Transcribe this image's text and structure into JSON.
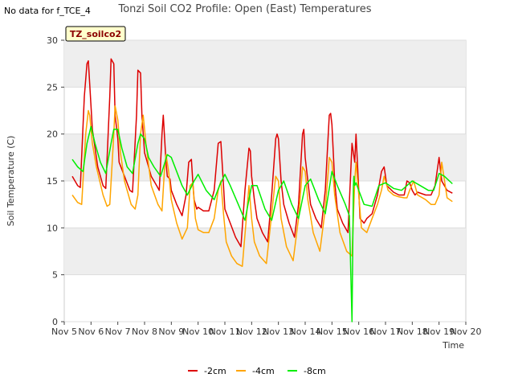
{
  "no_data_text": "No data for f_TCE_4",
  "badge_label": "TZ_soilco2",
  "chart_data": {
    "type": "line",
    "title": "Tonzi Soil CO2 Profile: Open (East) Temperatures",
    "xlabel": "Time",
    "ylabel": "Soil Temperature (C)",
    "xlim": [
      5,
      20
    ],
    "ylim": [
      0,
      30
    ],
    "x_ticks": [
      5,
      6,
      7,
      8,
      9,
      10,
      11,
      12,
      13,
      14,
      15,
      16,
      17,
      18,
      19,
      20
    ],
    "x_tick_labels": [
      "Nov 5",
      "Nov 6",
      "Nov 7",
      "Nov 8",
      "Nov 9",
      "Nov 10",
      "Nov 11",
      "Nov 12",
      "Nov 13",
      "Nov 14",
      "Nov 15",
      "Nov 16",
      "Nov 17",
      "Nov 18",
      "Nov 19",
      "Nov 20"
    ],
    "y_ticks": [
      0,
      5,
      10,
      15,
      20,
      25,
      30
    ],
    "y_tick_labels": [
      "0",
      "5",
      "10",
      "15",
      "20",
      "25",
      "30"
    ],
    "grid": true,
    "legend_position": "bottom-center",
    "series": [
      {
        "name": "-2cm",
        "color": "#dd0000",
        "x": [
          5.3,
          5.5,
          5.6,
          5.75,
          5.85,
          5.9,
          6.0,
          6.05,
          6.25,
          6.45,
          6.55,
          6.7,
          6.75,
          6.85,
          6.9,
          7.0,
          7.05,
          7.25,
          7.45,
          7.55,
          7.7,
          7.75,
          7.85,
          7.9,
          8.0,
          8.05,
          8.25,
          8.45,
          8.55,
          8.65,
          8.7,
          8.8,
          8.85,
          8.95,
          9.0,
          9.2,
          9.4,
          9.55,
          9.65,
          9.75,
          9.8,
          9.85,
          9.95,
          10.0,
          10.2,
          10.4,
          10.6,
          10.75,
          10.85,
          10.95,
          11.0,
          11.2,
          11.4,
          11.6,
          11.75,
          11.9,
          11.95,
          12.0,
          12.1,
          12.2,
          12.4,
          12.6,
          12.75,
          12.9,
          12.95,
          13.0,
          13.1,
          13.2,
          13.4,
          13.6,
          13.75,
          13.9,
          13.95,
          14.0,
          14.1,
          14.2,
          14.4,
          14.6,
          14.75,
          14.9,
          14.95,
          15.0,
          15.1,
          15.2,
          15.4,
          15.6,
          15.75,
          15.85,
          15.9,
          16.0,
          16.05,
          16.2,
          16.3,
          16.5,
          16.7,
          16.85,
          16.95,
          17.05,
          17.3,
          17.5,
          17.7,
          17.8,
          17.9,
          18.0,
          18.1,
          18.2,
          18.5,
          18.7,
          18.85,
          19.0,
          19.1,
          19.3,
          19.5
        ],
        "y": [
          15.5,
          14.5,
          14.3,
          24.0,
          27.5,
          27.8,
          23.0,
          20.5,
          16.5,
          14.5,
          14.2,
          24.0,
          28.0,
          27.5,
          22.0,
          19.5,
          17.0,
          15.5,
          14.0,
          13.8,
          22.0,
          26.8,
          26.5,
          22.0,
          18.0,
          17.5,
          15.5,
          14.5,
          14.0,
          20.0,
          22.0,
          17.0,
          15.5,
          15.2,
          14.0,
          12.5,
          11.3,
          13.5,
          17.0,
          17.3,
          15.0,
          13.0,
          12.0,
          12.2,
          11.8,
          11.8,
          14.0,
          19.0,
          19.2,
          14.5,
          12.0,
          10.5,
          9.0,
          8.0,
          14.0,
          18.5,
          18.2,
          15.5,
          13.0,
          11.0,
          9.5,
          8.5,
          13.5,
          19.5,
          20.0,
          19.5,
          15.0,
          12.5,
          10.5,
          9.0,
          12.5,
          20.0,
          20.5,
          17.5,
          15.0,
          12.5,
          11.0,
          10.0,
          14.0,
          22.0,
          22.2,
          21.0,
          15.0,
          12.0,
          10.5,
          9.5,
          19.0,
          17.0,
          20.0,
          14.0,
          11.0,
          10.5,
          11.0,
          11.5,
          13.5,
          16.0,
          16.5,
          14.5,
          13.8,
          13.5,
          13.5,
          15.0,
          14.8,
          14.0,
          13.5,
          13.8,
          13.5,
          13.5,
          14.5,
          17.5,
          15.0,
          14.0,
          13.7
        ]
      },
      {
        "name": "-4cm",
        "color": "#ffa500",
        "x": [
          5.3,
          5.5,
          5.65,
          5.8,
          5.9,
          5.95,
          6.05,
          6.2,
          6.45,
          6.6,
          6.7,
          6.85,
          6.9,
          7.0,
          7.1,
          7.25,
          7.5,
          7.65,
          7.75,
          7.85,
          7.95,
          8.05,
          8.25,
          8.5,
          8.65,
          8.75,
          8.8,
          8.9,
          9.0,
          9.2,
          9.4,
          9.6,
          9.7,
          9.8,
          9.9,
          10.0,
          10.2,
          10.4,
          10.6,
          10.75,
          10.85,
          10.95,
          11.05,
          11.25,
          11.45,
          11.65,
          11.8,
          11.9,
          12.0,
          12.1,
          12.3,
          12.55,
          12.75,
          12.9,
          13.0,
          13.1,
          13.3,
          13.55,
          13.75,
          13.9,
          14.0,
          14.1,
          14.3,
          14.55,
          14.75,
          14.9,
          15.0,
          15.1,
          15.3,
          15.55,
          15.75,
          15.85,
          15.9,
          16.0,
          16.1,
          16.3,
          16.5,
          16.7,
          16.85,
          16.95,
          17.1,
          17.3,
          17.5,
          17.7,
          17.8,
          17.9,
          18.05,
          18.2,
          18.5,
          18.7,
          18.85,
          19.0,
          19.1,
          19.3,
          19.5
        ],
        "y": [
          13.5,
          12.7,
          12.5,
          20.0,
          22.5,
          22.0,
          19.0,
          16.5,
          13.5,
          12.3,
          12.5,
          20.0,
          23.0,
          21.5,
          18.0,
          15.0,
          12.5,
          12.0,
          13.5,
          20.0,
          22.0,
          19.0,
          14.5,
          12.5,
          11.8,
          16.5,
          17.8,
          16.0,
          13.0,
          10.5,
          8.8,
          10.0,
          14.5,
          14.8,
          11.0,
          9.8,
          9.5,
          9.5,
          11.0,
          14.0,
          15.0,
          11.5,
          8.5,
          7.0,
          6.2,
          5.9,
          11.0,
          14.5,
          11.0,
          8.5,
          7.0,
          6.2,
          11.5,
          15.5,
          15.0,
          11.0,
          8.0,
          6.5,
          11.0,
          16.5,
          16.0,
          13.0,
          9.5,
          7.5,
          12.0,
          17.5,
          17.0,
          13.5,
          9.5,
          7.5,
          7.0,
          15.0,
          17.0,
          13.5,
          10.0,
          9.5,
          11.0,
          12.5,
          14.0,
          15.5,
          14.0,
          13.5,
          13.3,
          13.2,
          13.2,
          14.0,
          15.0,
          13.5,
          13.0,
          12.5,
          12.5,
          13.5,
          17.0,
          13.2,
          12.8
        ]
      },
      {
        "name": "-8cm",
        "color": "#00ee00",
        "x": [
          5.3,
          5.5,
          5.7,
          5.85,
          6.0,
          6.15,
          6.35,
          6.55,
          6.75,
          6.85,
          7.0,
          7.15,
          7.35,
          7.55,
          7.75,
          7.85,
          8.0,
          8.15,
          8.35,
          8.6,
          8.85,
          9.0,
          9.2,
          9.4,
          9.6,
          9.85,
          10.0,
          10.3,
          10.6,
          10.8,
          11.0,
          11.2,
          11.5,
          11.75,
          12.0,
          12.2,
          12.5,
          12.75,
          13.0,
          13.2,
          13.5,
          13.75,
          14.0,
          14.2,
          14.5,
          14.75,
          15.0,
          15.2,
          15.5,
          15.65,
          15.75,
          15.8,
          15.82,
          15.85,
          15.9,
          16.0,
          16.2,
          16.5,
          16.75,
          17.0,
          17.3,
          17.6,
          17.8,
          18.0,
          18.3,
          18.6,
          18.8,
          19.0,
          19.2,
          19.5
        ],
        "y": [
          17.3,
          16.5,
          16.0,
          19.0,
          20.8,
          19.0,
          17.0,
          15.8,
          19.0,
          20.5,
          20.5,
          18.5,
          16.5,
          15.8,
          19.0,
          20.0,
          19.5,
          17.5,
          16.5,
          15.5,
          17.8,
          17.5,
          16.0,
          14.5,
          13.5,
          15.0,
          15.7,
          14.0,
          13.0,
          14.5,
          15.7,
          14.5,
          12.5,
          10.8,
          14.5,
          14.5,
          12.0,
          10.8,
          14.0,
          15.0,
          12.5,
          11.0,
          14.5,
          15.2,
          13.0,
          11.5,
          16.0,
          14.5,
          12.5,
          11.3,
          0.0,
          14.5,
          15.5,
          14.5,
          14.8,
          14.0,
          12.5,
          12.3,
          14.5,
          14.8,
          14.2,
          14.0,
          14.5,
          15.0,
          14.5,
          14.0,
          14.0,
          15.8,
          15.5,
          14.7
        ]
      }
    ]
  }
}
